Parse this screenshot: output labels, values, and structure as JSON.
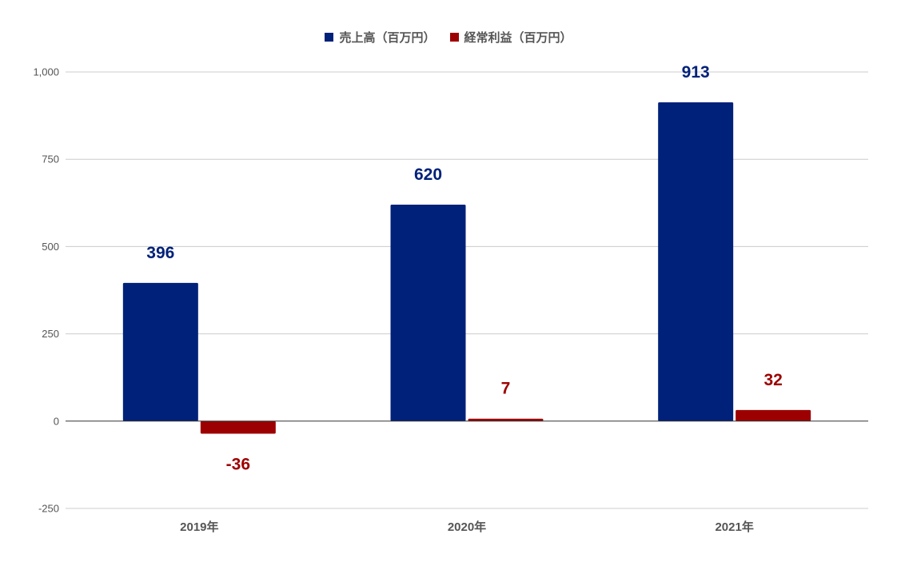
{
  "chart_data": {
    "type": "bar",
    "categories": [
      "2019年",
      "2020年",
      "2021年"
    ],
    "series": [
      {
        "name": "売上高（百万円）",
        "values": [
          396,
          620,
          913
        ],
        "color": "#002179",
        "labels": [
          "396",
          "620",
          "913"
        ]
      },
      {
        "name": "経常利益（百万円）",
        "values": [
          -36,
          7,
          32
        ],
        "color": "#9d0000",
        "labels": [
          "-36",
          "7",
          "32"
        ]
      }
    ],
    "ylim": [
      -250,
      1000
    ],
    "yticks": [
      -250,
      0,
      250,
      500,
      750,
      1000
    ],
    "ytick_labels": [
      "-250",
      "0",
      "250",
      "500",
      "750",
      "1,000"
    ],
    "grid": true,
    "legend_position": "top"
  }
}
